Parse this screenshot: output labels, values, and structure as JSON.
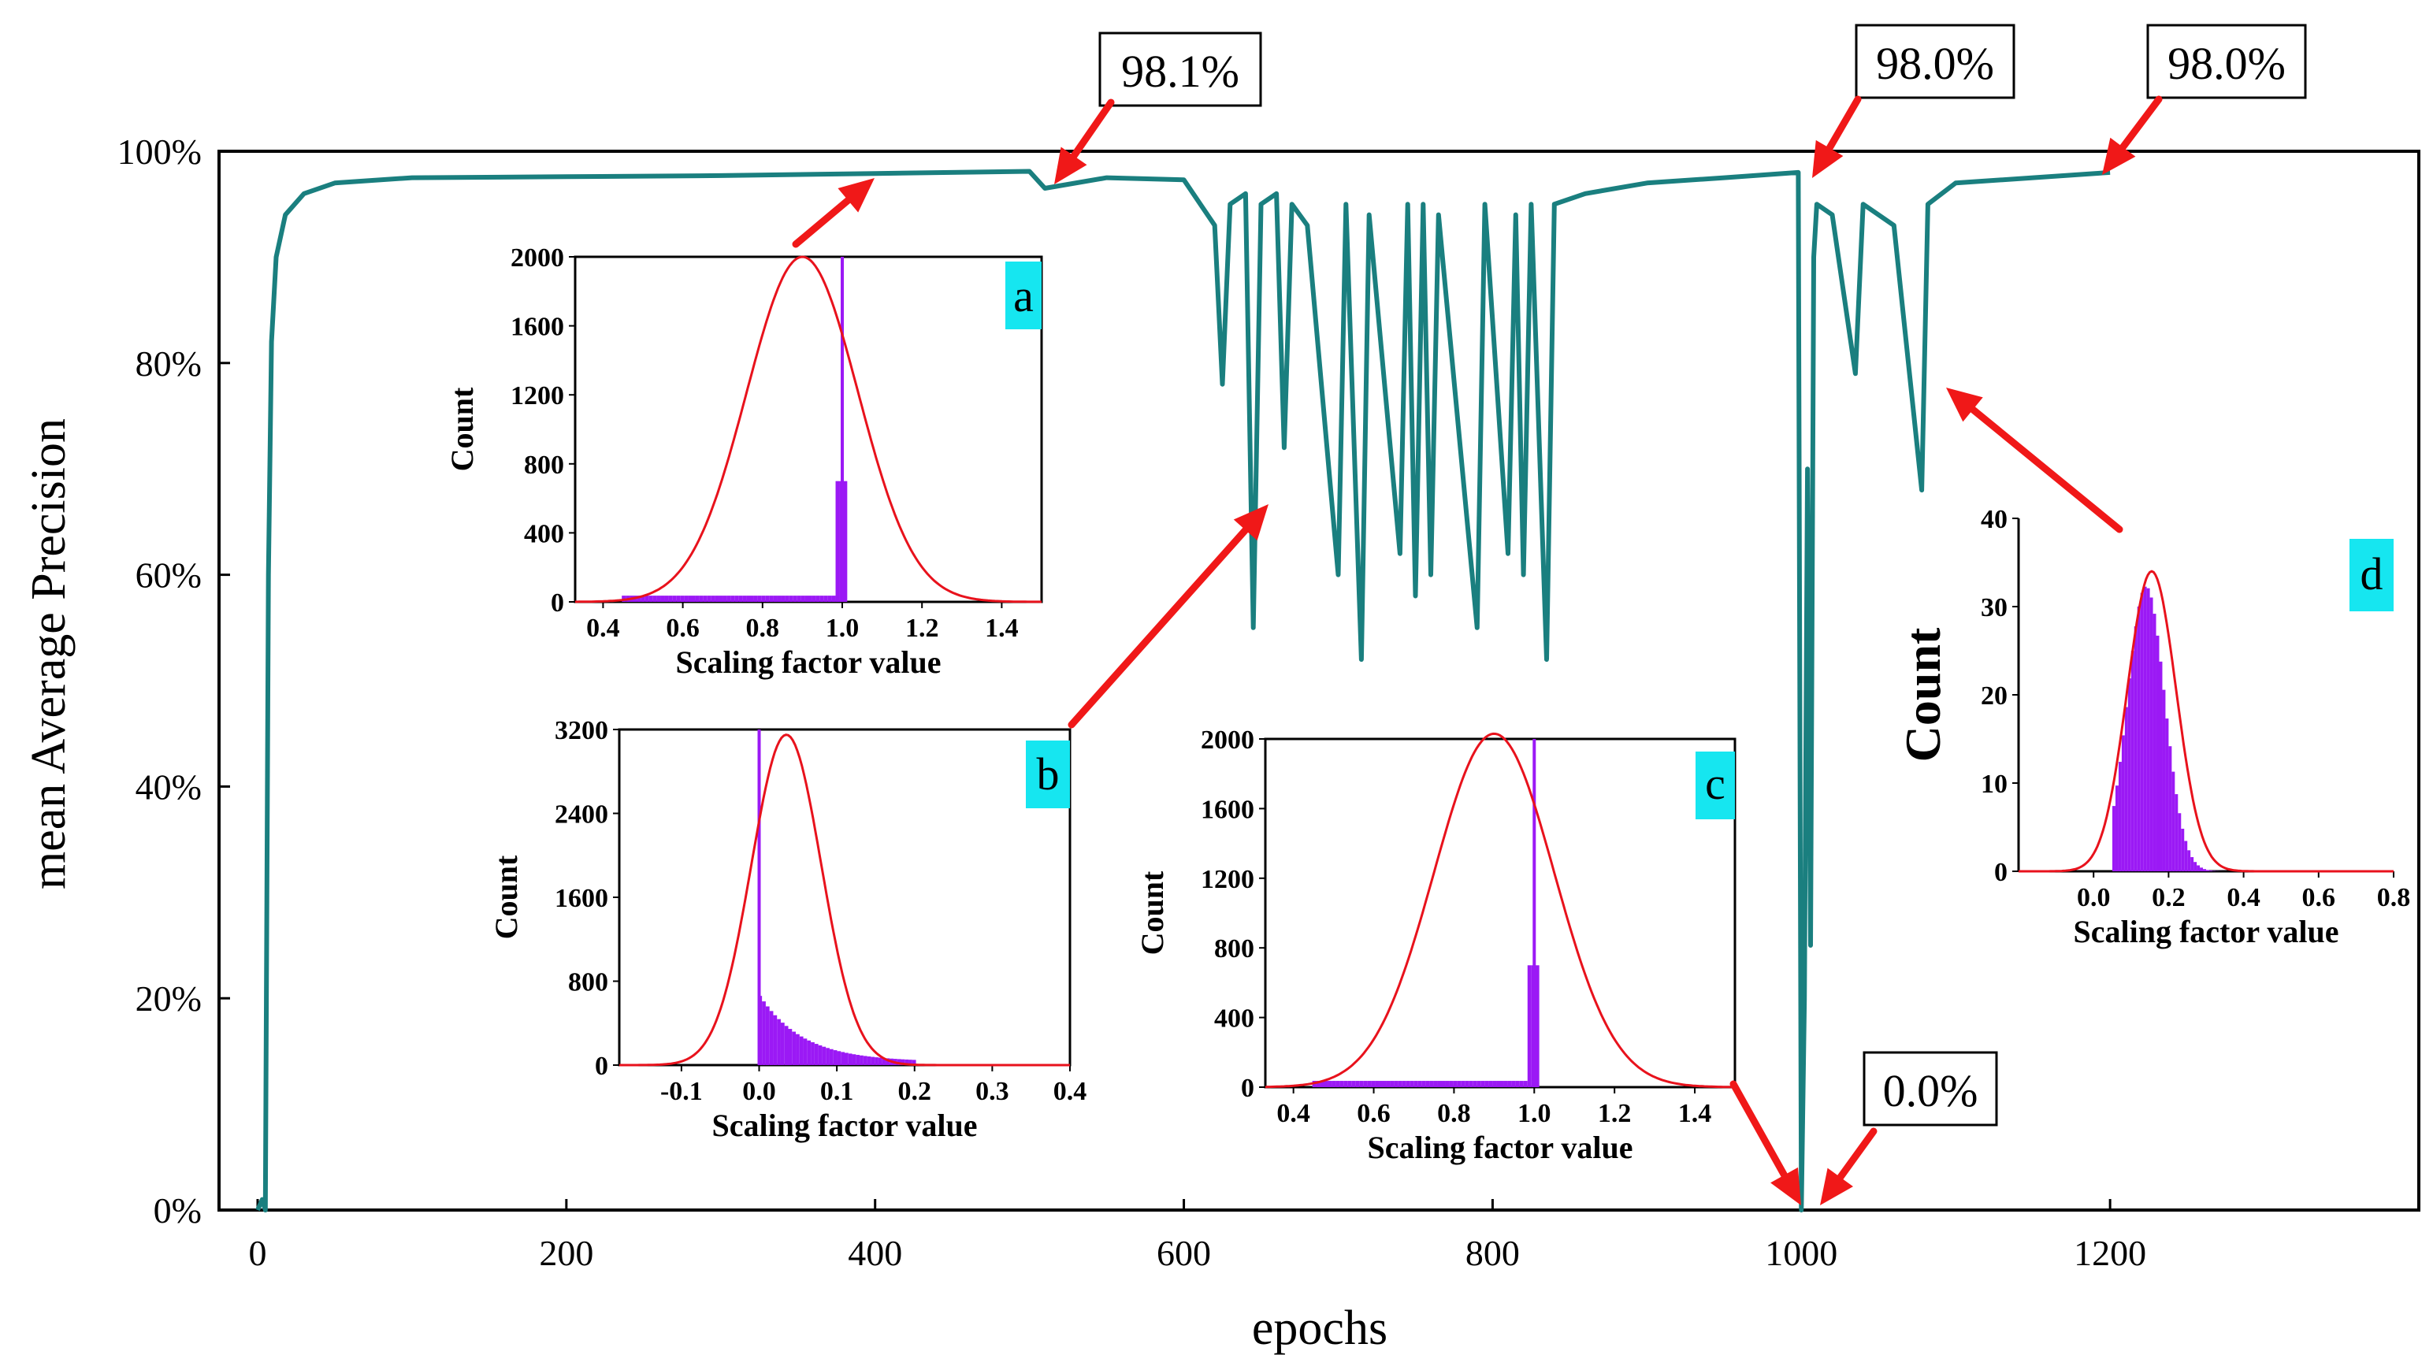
{
  "chart_data": {
    "type": "line",
    "xlabel": "epochs",
    "ylabel": "mean Average Precision",
    "xlim": [
      -25,
      1400
    ],
    "ylim": [
      0,
      100
    ],
    "x_ticks": [
      "0",
      "200",
      "400",
      "600",
      "800",
      "1000",
      "1200"
    ],
    "y_ticks": [
      "0%",
      "20%",
      "40%",
      "60%",
      "80%",
      "100%"
    ],
    "series": [
      {
        "name": "mAP",
        "color": "#1a7f7f",
        "points": [
          [
            0,
            0
          ],
          [
            3,
            1
          ],
          [
            5,
            0
          ],
          [
            7,
            60
          ],
          [
            9,
            82
          ],
          [
            12,
            90
          ],
          [
            18,
            94
          ],
          [
            30,
            96
          ],
          [
            50,
            97
          ],
          [
            100,
            97.5
          ],
          [
            200,
            97.6
          ],
          [
            300,
            97.7
          ],
          [
            400,
            97.9
          ],
          [
            500,
            98.1
          ],
          [
            510,
            96.5
          ],
          [
            550,
            97.5
          ],
          [
            600,
            97.3
          ],
          [
            620,
            93
          ],
          [
            625,
            78
          ],
          [
            630,
            95
          ],
          [
            640,
            96
          ],
          [
            645,
            55
          ],
          [
            650,
            95
          ],
          [
            660,
            96
          ],
          [
            665,
            72
          ],
          [
            670,
            95
          ],
          [
            680,
            93
          ],
          [
            700,
            60
          ],
          [
            705,
            95
          ],
          [
            715,
            52
          ],
          [
            720,
            94
          ],
          [
            740,
            62
          ],
          [
            745,
            95
          ],
          [
            750,
            58
          ],
          [
            755,
            95
          ],
          [
            760,
            60
          ],
          [
            765,
            94
          ],
          [
            790,
            55
          ],
          [
            795,
            95
          ],
          [
            810,
            62
          ],
          [
            815,
            94
          ],
          [
            820,
            60
          ],
          [
            825,
            95
          ],
          [
            835,
            52
          ],
          [
            840,
            95
          ],
          [
            860,
            96
          ],
          [
            900,
            97
          ],
          [
            950,
            97.5
          ],
          [
            998,
            98.0
          ],
          [
            1000,
            0
          ],
          [
            1002,
            20
          ],
          [
            1004,
            70
          ],
          [
            1006,
            25
          ],
          [
            1008,
            90
          ],
          [
            1010,
            95
          ],
          [
            1020,
            94
          ],
          [
            1035,
            79
          ],
          [
            1040,
            95
          ],
          [
            1060,
            93
          ],
          [
            1078,
            68
          ],
          [
            1082,
            95
          ],
          [
            1100,
            97
          ],
          [
            1150,
            97.5
          ],
          [
            1200,
            98.0
          ]
        ]
      }
    ],
    "callouts": [
      {
        "label": "98.1%",
        "x": 500,
        "y": 98.1
      },
      {
        "label": "98.0%",
        "x": 1000,
        "y": 98.0
      },
      {
        "label": "98.0%",
        "x": 1200,
        "y": 98.0
      },
      {
        "label": "0.0%",
        "x": 1000,
        "y": 0.0
      }
    ],
    "insets": [
      {
        "id": "a",
        "type": "histogram",
        "xlabel": "Scaling factor value",
        "ylabel": "Count",
        "xlim": [
          0.33,
          1.5
        ],
        "ylim": [
          0,
          2000
        ],
        "x_ticks": [
          "0.4",
          "0.6",
          "0.8",
          "1.0",
          "1.2",
          "1.4"
        ],
        "y_ticks": [
          "0",
          "400",
          "800",
          "1200",
          "1600",
          "2000"
        ],
        "spike_x": 1.0,
        "spike_y": 2000,
        "fit_mean": 0.9,
        "fit_sd": 0.14,
        "fit_peak": 2000
      },
      {
        "id": "b",
        "type": "histogram",
        "xlabel": "Scaling factor value",
        "ylabel": "Count",
        "xlim": [
          -0.18,
          0.4
        ],
        "ylim": [
          0,
          3200
        ],
        "x_ticks": [
          "-0.1",
          "0.0",
          "0.1",
          "0.2",
          "0.3",
          "0.4"
        ],
        "y_ticks": [
          "0",
          "800",
          "1600",
          "2400",
          "3200"
        ],
        "spike_x": 0.0,
        "spike_y": 3200,
        "fit_mean": 0.035,
        "fit_sd": 0.045,
        "fit_peak": 3150
      },
      {
        "id": "c",
        "type": "histogram",
        "xlabel": "Scaling factor value",
        "ylabel": "Count",
        "xlim": [
          0.33,
          1.5
        ],
        "ylim": [
          0,
          2000
        ],
        "x_ticks": [
          "0.4",
          "0.6",
          "0.8",
          "1.0",
          "1.2",
          "1.4"
        ],
        "y_ticks": [
          "0",
          "400",
          "800",
          "1200",
          "1600",
          "2000"
        ],
        "spike_x": 1.0,
        "spike_y": 2000,
        "fit_mean": 0.9,
        "fit_sd": 0.15,
        "fit_peak": 2030
      },
      {
        "id": "d",
        "type": "histogram",
        "xlabel": "Scaling factor value",
        "ylabel": "Count",
        "xlim": [
          -0.2,
          0.8
        ],
        "ylim": [
          0,
          40
        ],
        "x_ticks": [
          "0.0",
          "0.2",
          "0.4",
          "0.6",
          "0.8"
        ],
        "y_ticks": [
          "0",
          "10",
          "20",
          "30",
          "40"
        ],
        "fit_mean": 0.155,
        "fit_sd": 0.065,
        "fit_peak": 34
      }
    ]
  },
  "colors": {
    "line": "#1a7f7f",
    "arrow": "#f01818",
    "hist": "#9b19f5",
    "fit": "#e8121c",
    "inset_label_bg": "#16e6f0"
  }
}
